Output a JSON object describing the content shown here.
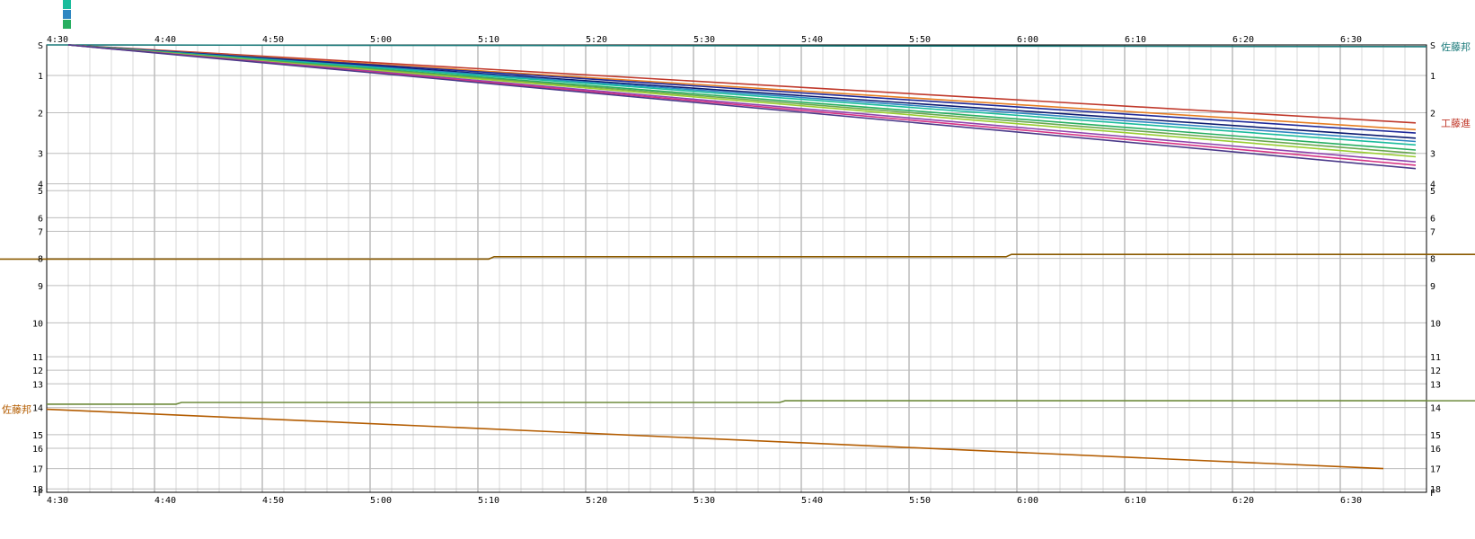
{
  "chart_data": {
    "type": "line",
    "title": "",
    "xlabel": "",
    "ylabel": "",
    "x_ticks": [
      "4:30",
      "4:40",
      "4:50",
      "5:00",
      "5:10",
      "5:20",
      "5:30",
      "5:40",
      "5:50",
      "6:00",
      "6:10",
      "6:20",
      "6:30"
    ],
    "x_range_minutes": [
      270,
      398
    ],
    "y_stations": [
      {
        "label": "S",
        "value": 0.0
      },
      {
        "label": "1",
        "value": 0.9
      },
      {
        "label": "2",
        "value": 2.0
      },
      {
        "label": "3",
        "value": 3.2
      },
      {
        "label": "4",
        "value": 4.1
      },
      {
        "label": "5",
        "value": 4.3
      },
      {
        "label": "6",
        "value": 5.1
      },
      {
        "label": "7",
        "value": 5.5
      },
      {
        "label": "8",
        "value": 6.3
      },
      {
        "label": "9",
        "value": 7.1
      },
      {
        "label": "10",
        "value": 8.2
      },
      {
        "label": "11",
        "value": 9.2
      },
      {
        "label": "12",
        "value": 9.6
      },
      {
        "label": "13",
        "value": 10.0
      },
      {
        "label": "14",
        "value": 10.7
      },
      {
        "label": "15",
        "value": 11.5
      },
      {
        "label": "16",
        "value": 11.9
      },
      {
        "label": "17",
        "value": 12.5
      },
      {
        "label": "18",
        "value": 13.1
      },
      {
        "label": "F",
        "value": 13.2
      }
    ],
    "y_range": [
      0,
      13.2
    ],
    "grid": true,
    "minor_grid_minutes": 2,
    "series": [
      {
        "color": "#1a7a7a",
        "x": [
          270,
          398
        ],
        "y": [
          0.0,
          0.05
        ]
      },
      {
        "color": "#8b5a00",
        "x": [
          270,
          311,
          311.5,
          359,
          359.5,
          398
        ],
        "y": [
          6.32,
          6.32,
          6.25,
          6.25,
          6.18,
          6.18
        ]
      },
      {
        "color": "#6e8b3d",
        "x": [
          270,
          282,
          282.5,
          338,
          338.5,
          398
        ],
        "y": [
          10.6,
          10.6,
          10.55,
          10.55,
          10.5,
          10.5
        ]
      },
      {
        "color": "#b35c00",
        "x": [
          270,
          394
        ],
        "y": [
          10.75,
          12.5
        ]
      },
      {
        "color": "#c0392b",
        "x": [
          272,
          397
        ],
        "y": [
          0.0,
          2.3
        ]
      },
      {
        "color": "#e67e22",
        "x": [
          272,
          397
        ],
        "y": [
          0.0,
          2.5
        ]
      },
      {
        "color": "#1f2a9a",
        "x": [
          272,
          397
        ],
        "y": [
          0.0,
          2.6
        ]
      },
      {
        "color": "#0b1a70",
        "x": [
          272,
          397
        ],
        "y": [
          0.0,
          2.75
        ]
      },
      {
        "color": "#2e86c1",
        "x": [
          272,
          397
        ],
        "y": [
          0.0,
          2.85
        ]
      },
      {
        "color": "#1abc9c",
        "x": [
          272,
          397
        ],
        "y": [
          0.0,
          2.95
        ]
      },
      {
        "color": "#27ae60",
        "x": [
          272,
          397
        ],
        "y": [
          0.0,
          3.1
        ]
      },
      {
        "color": "#6aa84f",
        "x": [
          272,
          397
        ],
        "y": [
          0.0,
          3.2
        ]
      },
      {
        "color": "#9acd32",
        "x": [
          272,
          397
        ],
        "y": [
          0.0,
          3.3
        ]
      },
      {
        "color": "#8e44ad",
        "x": [
          272,
          397
        ],
        "y": [
          0.0,
          3.45
        ]
      },
      {
        "color": "#d63384",
        "x": [
          272,
          397
        ],
        "y": [
          0.0,
          3.55
        ]
      },
      {
        "color": "#4b3a8a",
        "x": [
          272,
          397
        ],
        "y": [
          0.0,
          3.65
        ]
      }
    ],
    "edge_labels": [
      {
        "text": "佐藤邦",
        "side": "left",
        "y": 10.75,
        "color": "#b35c00"
      },
      {
        "text": "佐藤邦",
        "side": "right",
        "y": 0.05,
        "color": "#1a7a7a"
      },
      {
        "text": "工藤進",
        "side": "right",
        "y": 2.3,
        "color": "#c0392b"
      }
    ]
  },
  "top_legend_colors": [
    "#1abc9c",
    "#2e86c1",
    "#27ae60"
  ]
}
